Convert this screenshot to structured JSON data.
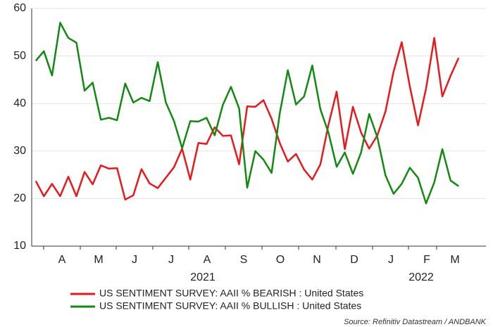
{
  "chart_data": {
    "type": "line",
    "x_labels": [
      "A",
      "M",
      "J",
      "J",
      "A",
      "S",
      "O",
      "N",
      "D",
      "J",
      "F",
      "M"
    ],
    "year_labels": [
      "2021",
      "2022"
    ],
    "series": [
      {
        "name": "US SENTIMENT SURVEY: AAII % BEARISH : United States",
        "color": "#e8191c",
        "values": [
          23.7,
          20.5,
          23.1,
          20.5,
          24.6,
          20.5,
          25.6,
          23.0,
          27.0,
          26.3,
          26.4,
          19.8,
          20.7,
          26.2,
          23.2,
          22.2,
          24.4,
          26.6,
          30.5,
          24.0,
          31.7,
          31.5,
          35.0,
          33.2,
          33.3,
          27.2,
          39.4,
          39.3,
          40.7,
          36.8,
          31.7,
          27.8,
          29.4,
          26.1,
          24.0,
          27.2,
          35.6,
          42.5,
          30.4,
          39.3,
          33.9,
          30.5,
          33.3,
          38.3,
          46.7,
          52.9,
          43.6,
          35.4,
          43.2,
          53.8,
          41.5,
          45.8,
          49.6
        ]
      },
      {
        "name": "US SENTIMENT SURVEY: AAII % BULLISH : United States",
        "color": "#128a12",
        "values": [
          49.0,
          51.0,
          45.9,
          57.0,
          53.8,
          52.8,
          42.7,
          44.4,
          36.6,
          37.0,
          36.5,
          44.2,
          40.2,
          41.2,
          40.5,
          48.7,
          40.2,
          36.3,
          30.6,
          36.3,
          36.2,
          37.0,
          33.3,
          39.7,
          43.5,
          39.0,
          22.3,
          30.0,
          28.2,
          25.4,
          37.9,
          47.0,
          39.8,
          41.5,
          48.0,
          38.8,
          33.8,
          26.7,
          29.7,
          25.2,
          29.7,
          37.8,
          32.9,
          24.9,
          21.0,
          23.1,
          26.5,
          24.4,
          19.0,
          23.4,
          30.4,
          23.8,
          22.6
        ]
      }
    ],
    "ylim": [
      10,
      60
    ],
    "yticks": [
      10,
      20,
      30,
      40,
      50,
      60
    ],
    "grid": true,
    "source": "Source: Refinitiv Datastream / ANDBANK"
  }
}
